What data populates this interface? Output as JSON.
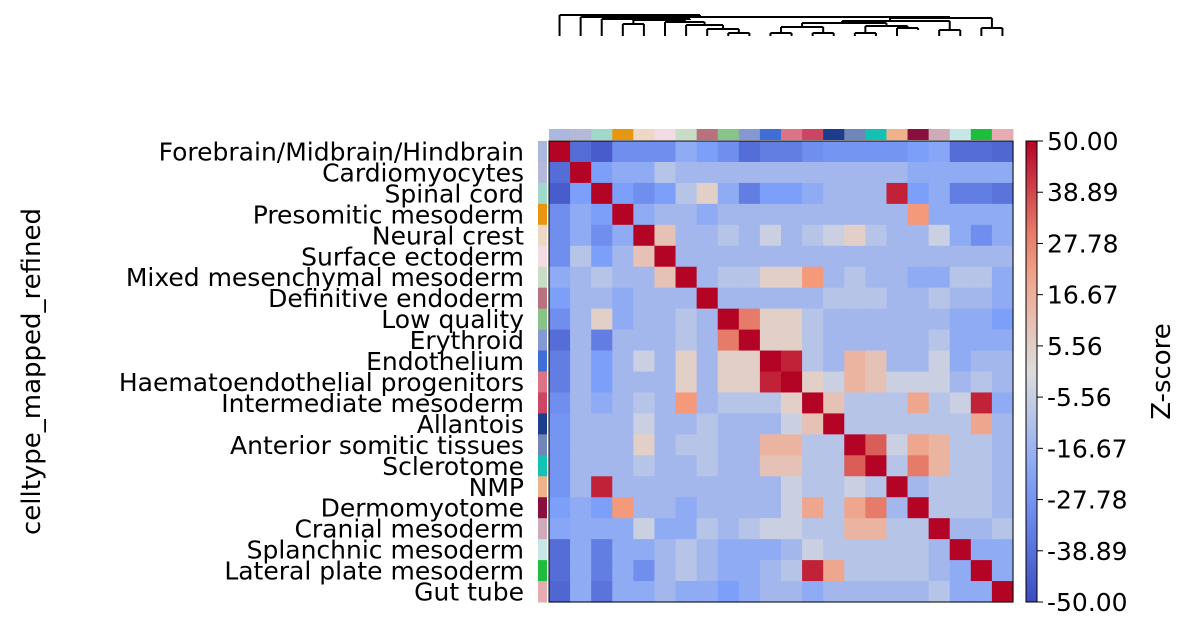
{
  "chart_data": {
    "type": "heatmap",
    "title": "",
    "ylabel": "celltype_mapped_refined",
    "xlabel": "",
    "colorbar": {
      "label": "Z-score",
      "min": -50,
      "max": 50,
      "ticks": [
        "50.00",
        "38.89",
        "27.78",
        "16.67",
        "5.56",
        "-5.56",
        "-16.67",
        "-27.78",
        "-38.89",
        "-50.00"
      ]
    },
    "categories": [
      "Forebrain/Midbrain/Hindbrain",
      "Cardiomyocytes",
      "Spinal cord",
      "Presomitic mesoderm",
      "Neural crest",
      "Surface ectoderm",
      "Mixed mesenchymal mesoderm",
      "Definitive endoderm",
      "Low quality",
      "Erythroid",
      "Endothelium",
      "Haematoendothelial progenitors",
      "Intermediate mesoderm",
      "Allantois",
      "Anterior somitic tissues",
      "Sclerotome",
      "NMP",
      "Dermomyotome",
      "Cranial mesoderm",
      "Splanchnic mesoderm",
      "Lateral plate mesoderm",
      "Gut tube"
    ],
    "category_colors": [
      "#aab8de",
      "#b5b9d9",
      "#9fd9cc",
      "#e8960f",
      "#efd7c6",
      "#f2dbe3",
      "#c9dcc6",
      "#b8727d",
      "#88c489",
      "#8498d4",
      "#3f6fd6",
      "#dc7386",
      "#cc4663",
      "#1c3d8e",
      "#6f86b8",
      "#14c2b4",
      "#efb38c",
      "#8b0f3e",
      "#cfaab9",
      "#c6e7e8",
      "#1fbd3c",
      "#e7acb3"
    ],
    "column_colors": [
      "#aab8de",
      "#b5b9d9",
      "#9fd9cc",
      "#e8960f",
      "#efd7c6",
      "#f2dbe3",
      "#c9dcc6",
      "#b8727d",
      "#88c489",
      "#8498d4",
      "#3f6fd6",
      "#dc7386",
      "#cc4663",
      "#1c3d8e",
      "#6f86b8",
      "#14c2b4",
      "#efb38c",
      "#8b0f3e",
      "#cfaab9",
      "#c6e7e8",
      "#1fbd3c",
      "#e7acb3"
    ],
    "values": [
      [
        50,
        -40,
        -45,
        -30,
        -30,
        -30,
        -20,
        -25,
        -30,
        -40,
        -35,
        -35,
        -30,
        -28,
        -28,
        -28,
        -28,
        -25,
        -22,
        -40,
        -40,
        -42
      ],
      [
        -40,
        50,
        -25,
        -20,
        -20,
        -10,
        -15,
        -15,
        -15,
        -15,
        -15,
        -15,
        -15,
        -15,
        -15,
        -15,
        -15,
        -20,
        -20,
        -20,
        -20,
        -20
      ],
      [
        -45,
        -25,
        50,
        -25,
        -30,
        -25,
        -10,
        5,
        -20,
        -35,
        -25,
        -25,
        -20,
        -15,
        -15,
        -15,
        45,
        -25,
        -20,
        -35,
        -35,
        -38
      ],
      [
        -30,
        -20,
        -25,
        50,
        -20,
        -15,
        -15,
        -20,
        -15,
        -15,
        -15,
        -15,
        -15,
        -15,
        -15,
        -15,
        -15,
        25,
        -20,
        -20,
        -20,
        -20
      ],
      [
        -30,
        -20,
        -30,
        -20,
        50,
        10,
        -15,
        -15,
        -10,
        -15,
        -5,
        -15,
        -10,
        -5,
        5,
        -10,
        -15,
        -15,
        -5,
        -20,
        -30,
        -20
      ],
      [
        -30,
        -10,
        -25,
        -15,
        10,
        50,
        -15,
        -15,
        -15,
        -15,
        -15,
        -15,
        -15,
        -15,
        -15,
        -15,
        -15,
        -15,
        -15,
        -15,
        -15,
        -15
      ],
      [
        -20,
        -15,
        -10,
        -15,
        -15,
        10,
        50,
        -15,
        -10,
        -10,
        5,
        5,
        25,
        -15,
        -10,
        -15,
        -15,
        -20,
        -20,
        -10,
        -10,
        -20
      ],
      [
        -25,
        -15,
        -15,
        -20,
        -15,
        -15,
        -15,
        50,
        -15,
        -15,
        -15,
        -15,
        -15,
        -10,
        -10,
        -10,
        -15,
        -15,
        -10,
        -15,
        -15,
        -20
      ],
      [
        -30,
        -15,
        5,
        -20,
        -15,
        -15,
        -10,
        -15,
        50,
        30,
        5,
        5,
        -10,
        -15,
        -15,
        -15,
        -15,
        -15,
        -15,
        -20,
        -20,
        -25
      ],
      [
        -40,
        -15,
        -35,
        -15,
        -15,
        -15,
        -10,
        -15,
        30,
        50,
        5,
        5,
        -10,
        -15,
        -15,
        -15,
        -15,
        -15,
        -10,
        -20,
        -20,
        -20
      ],
      [
        -35,
        -15,
        -25,
        -15,
        -5,
        -15,
        5,
        -15,
        5,
        5,
        50,
        45,
        -10,
        -15,
        15,
        10,
        -15,
        -15,
        -5,
        -20,
        -15,
        -15
      ],
      [
        -35,
        -15,
        -25,
        -15,
        -15,
        -15,
        5,
        -15,
        5,
        5,
        45,
        50,
        5,
        -5,
        15,
        10,
        -5,
        -5,
        -5,
        -15,
        -10,
        -15
      ],
      [
        -30,
        -15,
        -20,
        -15,
        -10,
        -15,
        25,
        -15,
        -10,
        -10,
        -10,
        5,
        50,
        10,
        -10,
        -10,
        -10,
        20,
        -10,
        -5,
        45,
        -20
      ],
      [
        -28,
        -15,
        -15,
        -15,
        -5,
        -15,
        -15,
        -10,
        -15,
        -15,
        -15,
        -5,
        10,
        50,
        -10,
        -10,
        -10,
        -10,
        -10,
        -10,
        20,
        -15
      ],
      [
        -28,
        -15,
        -15,
        -15,
        5,
        -15,
        -10,
        -10,
        -15,
        -15,
        15,
        15,
        -10,
        -10,
        50,
        35,
        -5,
        20,
        15,
        -10,
        -10,
        -15
      ],
      [
        -28,
        -15,
        -15,
        -15,
        -10,
        -15,
        -15,
        -10,
        -15,
        -15,
        10,
        10,
        -10,
        -10,
        35,
        50,
        -10,
        30,
        15,
        -10,
        -10,
        -15
      ],
      [
        -28,
        -15,
        45,
        -15,
        -15,
        -15,
        -15,
        -15,
        -15,
        -15,
        -15,
        -5,
        -10,
        -10,
        -5,
        -10,
        50,
        -15,
        -10,
        -10,
        -10,
        -15
      ],
      [
        -25,
        -20,
        -25,
        25,
        -15,
        -15,
        -20,
        -15,
        -15,
        -15,
        -15,
        -5,
        20,
        -10,
        20,
        30,
        -15,
        50,
        -10,
        -10,
        -10,
        -15
      ],
      [
        -22,
        -20,
        -20,
        -20,
        -5,
        -20,
        -20,
        -10,
        -15,
        -10,
        -5,
        -5,
        -10,
        -10,
        15,
        15,
        -10,
        -10,
        50,
        -15,
        -15,
        -10
      ],
      [
        -40,
        -20,
        -35,
        -20,
        -20,
        -15,
        -10,
        -15,
        -20,
        -20,
        -20,
        -15,
        -5,
        -10,
        -10,
        -10,
        -10,
        -10,
        -15,
        50,
        -20,
        -20
      ],
      [
        -40,
        -20,
        -35,
        -20,
        -30,
        -15,
        -10,
        -15,
        -20,
        -20,
        -15,
        -10,
        45,
        20,
        -10,
        -10,
        -10,
        -10,
        -15,
        -20,
        50,
        -20
      ],
      [
        -42,
        -20,
        -38,
        -20,
        -20,
        -15,
        -20,
        -20,
        -25,
        -20,
        -15,
        -15,
        -20,
        -15,
        -15,
        -15,
        -15,
        -15,
        -10,
        -20,
        -20,
        50
      ]
    ],
    "dendrogram": "hierarchical clustering tree above columns"
  }
}
